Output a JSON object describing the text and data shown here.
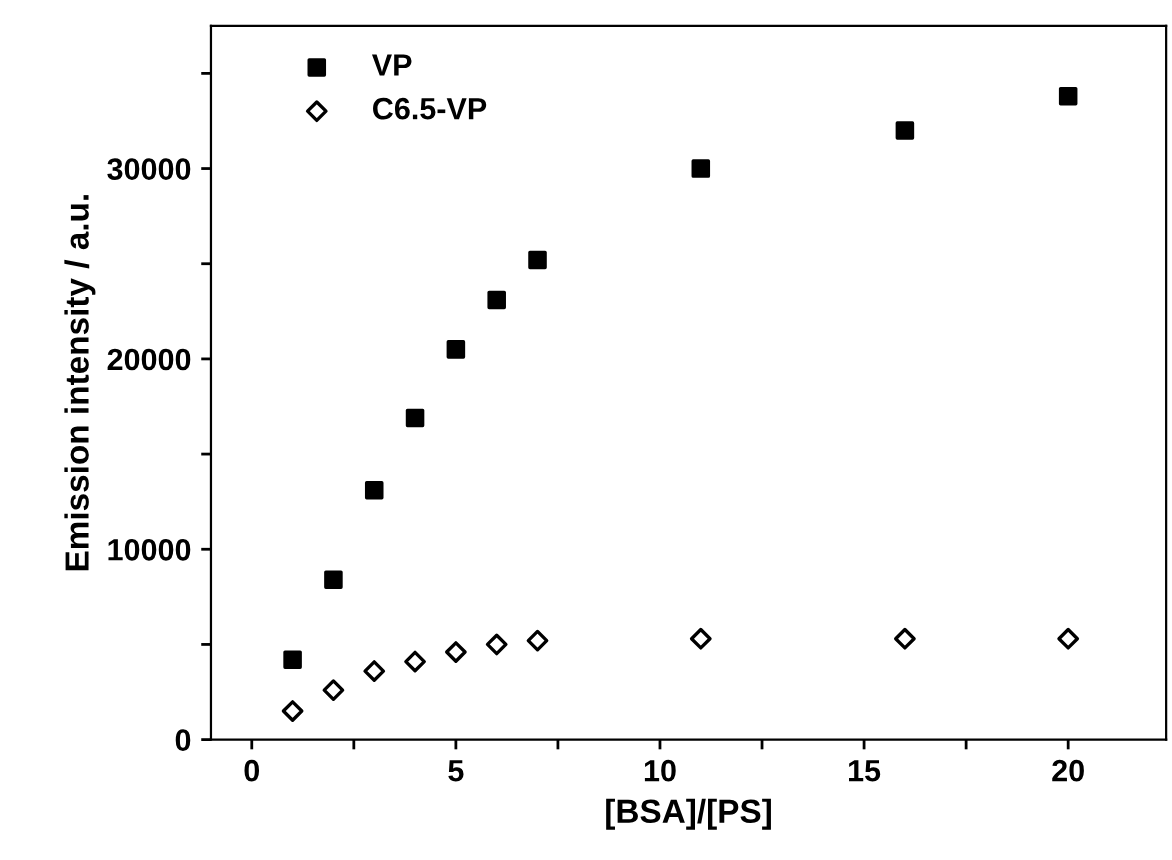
{
  "chart_data": {
    "type": "scatter",
    "xlabel": "[BSA]/[PS]",
    "ylabel": "Emission intensity / a.u.",
    "x": [
      1,
      2,
      3,
      4,
      5,
      6,
      7,
      11,
      16,
      20
    ],
    "series": [
      {
        "name": "VP",
        "color": "#000000",
        "marker": "square",
        "values": [
          4200,
          8400,
          13100,
          16900,
          20500,
          23100,
          25200,
          30000,
          32000,
          33800
        ]
      },
      {
        "name": "C6.5-VP",
        "color": "#000000",
        "marker": "diamond",
        "values": [
          1500,
          2600,
          3600,
          4100,
          4600,
          5000,
          5200,
          5300,
          5300,
          5300
        ]
      }
    ],
    "xlim": [
      -1,
      22.4
    ],
    "ylim": [
      0,
      37500
    ],
    "xticks": [
      0,
      {
        "value": 2.5,
        "label": null
      },
      5,
      {
        "value": 7.5,
        "label": null
      },
      10,
      {
        "value": 12.5,
        "label": null
      },
      15,
      {
        "value": 17.5,
        "label": null
      },
      20
    ],
    "yticks": [
      0,
      {
        "value": 5000,
        "label": null
      },
      10000,
      {
        "value": 15000,
        "label": null
      },
      20000,
      {
        "value": 25000,
        "label": null
      },
      30000,
      {
        "value": 35000,
        "label": null
      }
    ],
    "grid": false,
    "legend": "top left"
  }
}
